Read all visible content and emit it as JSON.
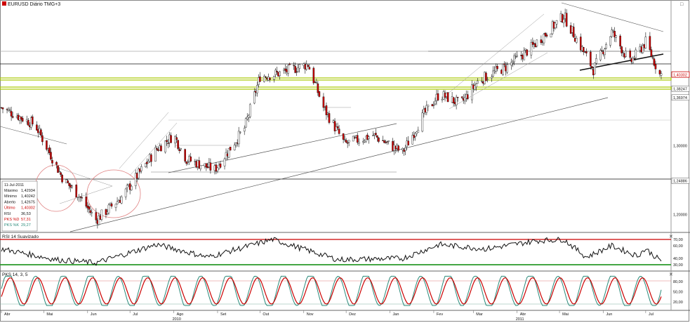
{
  "header": {
    "symbol_label": "EURUSD Diário TMG+3"
  },
  "window_controls": {
    "maximize": "□",
    "close": "✕"
  },
  "price_labels": [
    {
      "text": "1,40302",
      "value": 1.40302,
      "style": "current"
    },
    {
      "text": "1,38247",
      "value": 1.38247,
      "style": "level"
    },
    {
      "text": "1,36974",
      "value": 1.36974,
      "style": "level"
    },
    {
      "text": "1,30000",
      "value": 1.3,
      "style": "tick"
    },
    {
      "text": "1,24886",
      "value": 1.24886,
      "style": "level"
    },
    {
      "text": "1,20000",
      "value": 1.2,
      "style": "tick"
    }
  ],
  "info_box": {
    "date": "11-Jul-2011",
    "rows": [
      {
        "label": "Máximo",
        "value": "1,42934",
        "color": "#111111"
      },
      {
        "label": "Mínimo",
        "value": "1,40242",
        "color": "#111111"
      },
      {
        "label": "Aberto",
        "value": "1,42675",
        "color": "#111111"
      },
      {
        "label": "Último",
        "value": "1,40302",
        "color": "#cc0000"
      },
      {
        "label": "RSI",
        "value": "36,53",
        "color": "#111111"
      },
      {
        "label": "PKS %D",
        "value": "57,31",
        "color": "#cc0000"
      },
      {
        "label": "PKS %K",
        "value": "29,27",
        "color": "#2a8a7a"
      }
    ]
  },
  "rsi_panel": {
    "title": "RSI 14 Suavizado",
    "ticks": [
      {
        "text": "70,00",
        "value": 70
      },
      {
        "text": "60,00",
        "value": 60
      },
      {
        "text": "40,00",
        "value": 40
      },
      {
        "text": "30,00",
        "value": 30
      }
    ]
  },
  "pks_panel": {
    "title": "PKS 14, 3, 5",
    "ticks": [
      {
        "text": "80,00",
        "value": 80
      },
      {
        "text": "50,00",
        "value": 50
      },
      {
        "text": "20,00",
        "value": 20
      }
    ]
  },
  "x_axis": {
    "months": [
      "Abr",
      "Mai",
      "Jun",
      "Jul",
      "Ago",
      "Set",
      "Out",
      "Nov",
      "Dez",
      "Jan",
      "Fev",
      "Mar",
      "Abr",
      "Mai",
      "Jun",
      "Jul"
    ],
    "years": [
      "2010",
      "2011"
    ]
  },
  "colors": {
    "up_candle": "#ffffff",
    "down_candle": "#cc0000",
    "wick": "#111111",
    "support_band": "#a8c800",
    "rsi_line": "#111111",
    "pks_d": "#cc0000",
    "pks_k": "#2a8a7a"
  },
  "chart_data": {
    "type": "candlestick",
    "price_range": [
      1.175,
      1.505
    ],
    "horizontal_levels": [
      1.40302,
      1.38247,
      1.36974,
      1.24886
    ],
    "anchors": [
      {
        "x": "2010-04-01",
        "y": 1.355
      },
      {
        "x": "2010-04-25",
        "y": 1.33
      },
      {
        "x": "2010-05-15",
        "y": 1.25
      },
      {
        "x": "2010-05-25",
        "y": 1.23
      },
      {
        "x": "2010-06-07",
        "y": 1.192
      },
      {
        "x": "2010-06-25",
        "y": 1.225
      },
      {
        "x": "2010-07-20",
        "y": 1.295
      },
      {
        "x": "2010-08-01",
        "y": 1.315
      },
      {
        "x": "2010-08-10",
        "y": 1.28
      },
      {
        "x": "2010-08-30",
        "y": 1.265
      },
      {
        "x": "2010-09-20",
        "y": 1.325
      },
      {
        "x": "2010-10-01",
        "y": 1.4
      },
      {
        "x": "2010-10-15",
        "y": 1.405
      },
      {
        "x": "2010-11-04",
        "y": 1.418
      },
      {
        "x": "2010-11-15",
        "y": 1.355
      },
      {
        "x": "2010-11-30",
        "y": 1.302
      },
      {
        "x": "2010-12-20",
        "y": 1.315
      },
      {
        "x": "2011-01-10",
        "y": 1.29
      },
      {
        "x": "2011-01-25",
        "y": 1.345
      },
      {
        "x": "2011-02-05",
        "y": 1.375
      },
      {
        "x": "2011-02-20",
        "y": 1.36
      },
      {
        "x": "2011-03-05",
        "y": 1.395
      },
      {
        "x": "2011-03-25",
        "y": 1.415
      },
      {
        "x": "2011-04-10",
        "y": 1.44
      },
      {
        "x": "2011-05-04",
        "y": 1.488
      },
      {
        "x": "2011-05-25",
        "y": 1.41
      },
      {
        "x": "2011-06-07",
        "y": 1.465
      },
      {
        "x": "2011-06-20",
        "y": 1.42
      },
      {
        "x": "2011-07-01",
        "y": 1.45
      },
      {
        "x": "2011-07-11",
        "y": 1.403
      }
    ],
    "rsi_anchors": [
      {
        "x": "2010-04-01",
        "y": 55
      },
      {
        "x": "2010-05-10",
        "y": 38
      },
      {
        "x": "2010-06-07",
        "y": 33
      },
      {
        "x": "2010-07-20",
        "y": 62
      },
      {
        "x": "2010-08-25",
        "y": 42
      },
      {
        "x": "2010-10-10",
        "y": 70
      },
      {
        "x": "2010-11-25",
        "y": 38
      },
      {
        "x": "2011-01-10",
        "y": 40
      },
      {
        "x": "2011-02-05",
        "y": 62
      },
      {
        "x": "2011-03-10",
        "y": 55
      },
      {
        "x": "2011-04-15",
        "y": 68
      },
      {
        "x": "2011-05-04",
        "y": 70
      },
      {
        "x": "2011-05-20",
        "y": 42
      },
      {
        "x": "2011-06-07",
        "y": 60
      },
      {
        "x": "2011-06-25",
        "y": 44
      },
      {
        "x": "2011-07-01",
        "y": 55
      },
      {
        "x": "2011-07-11",
        "y": 37
      }
    ],
    "pks_cycles": 24,
    "pks_range": [
      10,
      95
    ]
  }
}
